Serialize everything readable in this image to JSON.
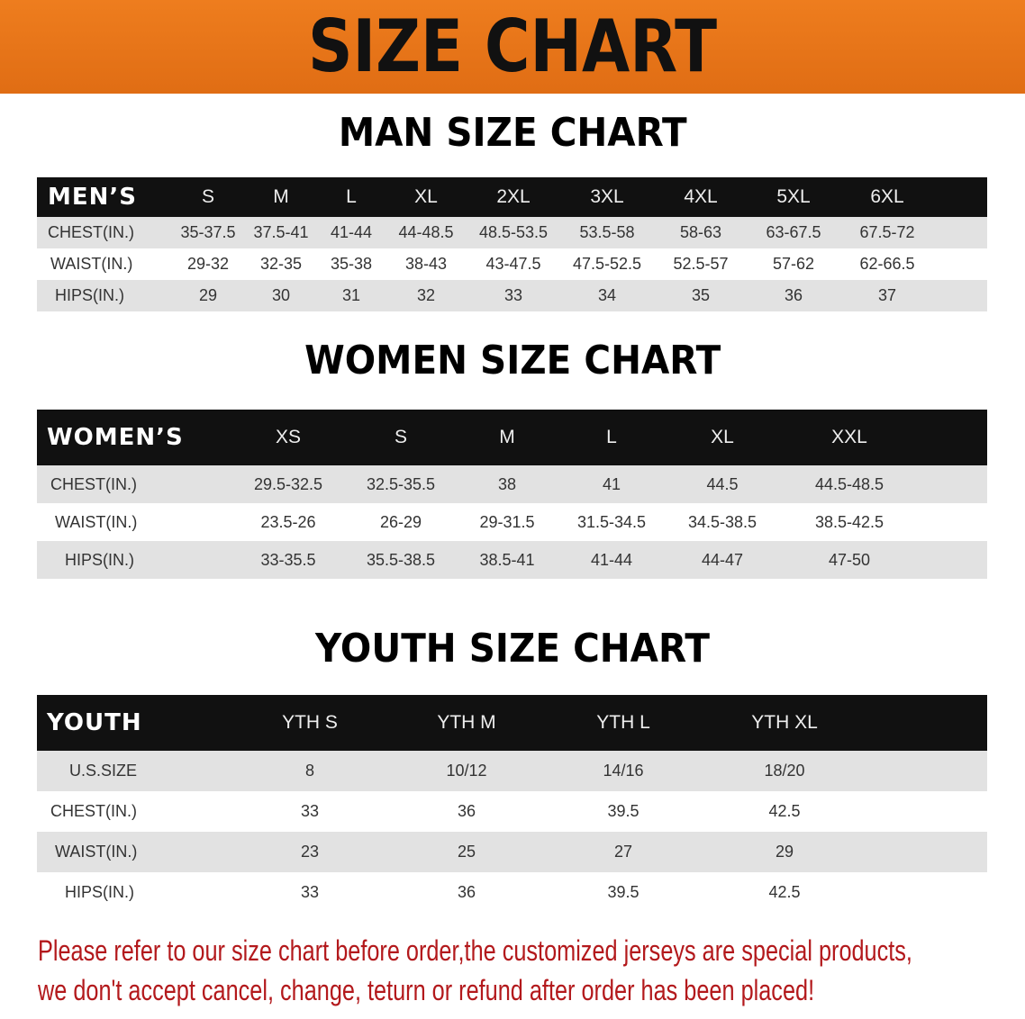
{
  "banner_title": "SIZE CHART",
  "colors": {
    "banner": "#e8751a",
    "header_row": "#111111",
    "shaded_row": "#e2e2e2",
    "note": "#b3191c"
  },
  "men": {
    "title": "MAN SIZE CHART",
    "header": "MEN’S",
    "sizes": [
      "S",
      "M",
      "L",
      "XL",
      "2XL",
      "3XL",
      "4XL",
      "5XL",
      "6XL"
    ],
    "rows": [
      {
        "label": "CHEST(IN.)",
        "values": [
          "35-37.5",
          "37.5-41",
          "41-44",
          "44-48.5",
          "48.5-53.5",
          "53.5-58",
          "58-63",
          "63-67.5",
          "67.5-72"
        ]
      },
      {
        "label": "WAIST(IN.)",
        "values": [
          "29-32",
          "32-35",
          "35-38",
          "38-43",
          "43-47.5",
          "47.5-52.5",
          "52.5-57",
          "57-62",
          "62-66.5"
        ]
      },
      {
        "label": "HIPS(IN.)",
        "values": [
          "29",
          "30",
          "31",
          "32",
          "33",
          "34",
          "35",
          "36",
          "37"
        ]
      }
    ]
  },
  "women": {
    "title": "WOMEN SIZE CHART",
    "header": "WOMEN’S",
    "sizes": [
      "XS",
      "S",
      "M",
      "L",
      "XL",
      "XXL"
    ],
    "rows": [
      {
        "label": "CHEST(IN.)",
        "values": [
          "29.5-32.5",
          "32.5-35.5",
          "38",
          "41",
          "44.5",
          "44.5-48.5"
        ]
      },
      {
        "label": "WAIST(IN.)",
        "values": [
          "23.5-26",
          "26-29",
          "29-31.5",
          "31.5-34.5",
          "34.5-38.5",
          "38.5-42.5"
        ]
      },
      {
        "label": "HIPS(IN.)",
        "values": [
          "33-35.5",
          "35.5-38.5",
          "38.5-41",
          "41-44",
          "44-47",
          "47-50"
        ]
      }
    ]
  },
  "youth": {
    "title": "YOUTH SIZE CHART",
    "header": "YOUTH",
    "sizes": [
      "YTH S",
      "YTH M",
      "YTH L",
      "YTH XL"
    ],
    "rows": [
      {
        "label": "U.S.SIZE",
        "values": [
          "8",
          "10/12",
          "14/16",
          "18/20"
        ]
      },
      {
        "label": "CHEST(IN.)",
        "values": [
          "33",
          "36",
          "39.5",
          "42.5"
        ]
      },
      {
        "label": "WAIST(IN.)",
        "values": [
          "23",
          "25",
          "27",
          "29"
        ]
      },
      {
        "label": "HIPS(IN.)",
        "values": [
          "33",
          "36",
          "39.5",
          "42.5"
        ]
      }
    ]
  },
  "note": {
    "line1": "Please refer to our size chart before order,the customized jerseys are special products,",
    "line2": "we don't accept cancel, change, teturn or refund after order has been placed!"
  }
}
